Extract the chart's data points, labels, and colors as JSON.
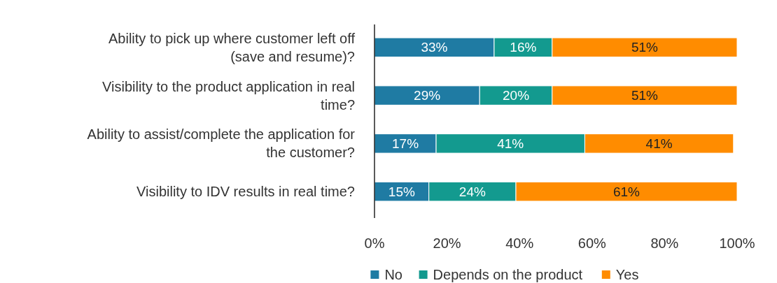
{
  "chart_data": {
    "type": "bar",
    "orientation": "horizontal",
    "stacked": true,
    "categories": [
      "Ability to pick up where customer left off (save and resume)?",
      "Visibility to the product application in real time?",
      "Ability to assist/complete the application for the customer?",
      "Visibility to IDV results in real time?"
    ],
    "series": [
      {
        "name": "No",
        "color": "#1f7ba3",
        "values": [
          33,
          29,
          17,
          15
        ],
        "value_labels": [
          "33%",
          "29%",
          "17%",
          "15%"
        ]
      },
      {
        "name": "Depends on the product",
        "color": "#139a8f",
        "values": [
          16,
          20,
          41,
          24
        ],
        "value_labels": [
          "16%",
          "20%",
          "41%",
          "24%"
        ]
      },
      {
        "name": "Yes",
        "color": "#ff8c00",
        "values": [
          51,
          51,
          41,
          61
        ],
        "value_labels": [
          "51%",
          "51%",
          "41%",
          "61%"
        ]
      }
    ],
    "xlim": [
      0,
      100
    ],
    "xticks": [
      {
        "value": 0,
        "label": "0%"
      },
      {
        "value": 20,
        "label": "20%"
      },
      {
        "value": 40,
        "label": "40%"
      },
      {
        "value": 60,
        "label": "60%"
      },
      {
        "value": 80,
        "label": "80%"
      },
      {
        "value": 100,
        "label": "100%"
      }
    ],
    "legend": "bottom",
    "grid": false
  }
}
